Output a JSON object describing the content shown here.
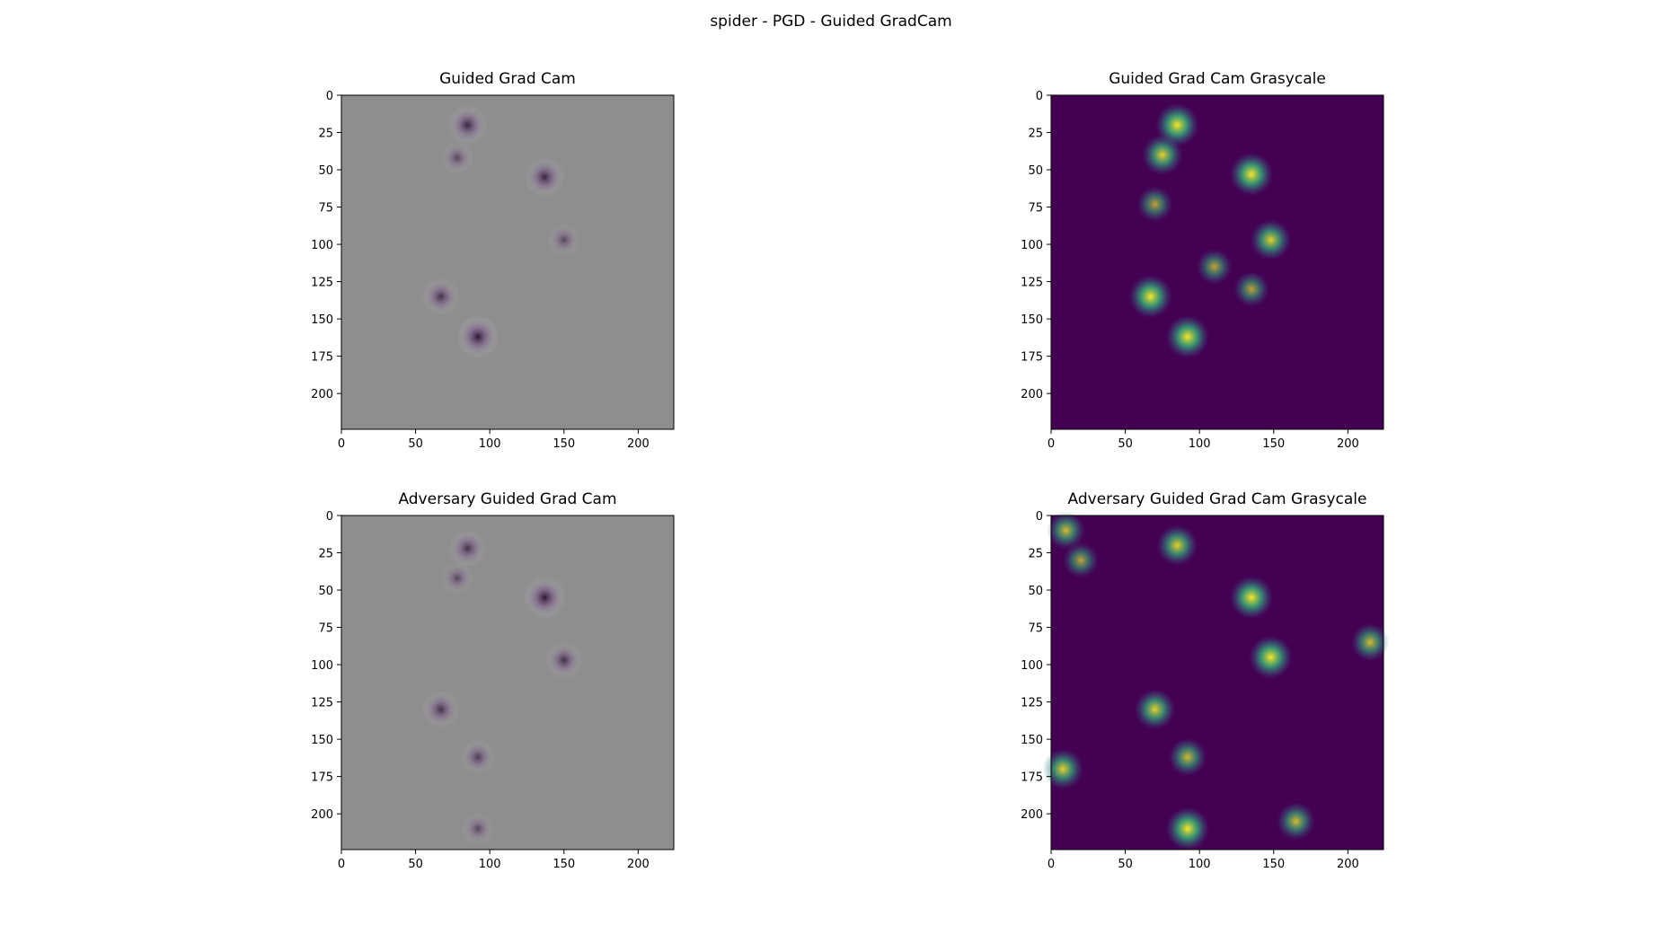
{
  "figure": {
    "title": "spider - PGD - Guided GradCam"
  },
  "colors": {
    "gray_bg": "#8e8e8e",
    "viridis_dark": "#440154",
    "viridis_yellow": "#fde725"
  },
  "chart_data": [
    {
      "type": "heatmap",
      "title": "Guided Grad Cam",
      "colormap": "rgb",
      "xlim": [
        0,
        224
      ],
      "ylim": [
        224,
        0
      ],
      "xticks": [
        0,
        50,
        100,
        150,
        200
      ],
      "yticks": [
        0,
        25,
        50,
        75,
        100,
        125,
        150,
        175,
        200
      ],
      "hotspots": [
        {
          "x": 85,
          "y": 20,
          "v": 0.9
        },
        {
          "x": 78,
          "y": 42,
          "v": 0.6
        },
        {
          "x": 137,
          "y": 55,
          "v": 0.9
        },
        {
          "x": 150,
          "y": 97,
          "v": 0.6
        },
        {
          "x": 67,
          "y": 135,
          "v": 0.8
        },
        {
          "x": 92,
          "y": 162,
          "v": 1.0
        }
      ]
    },
    {
      "type": "heatmap",
      "title": "Guided Grad Cam Grasycale",
      "colormap": "viridis",
      "xlim": [
        0,
        224
      ],
      "ylim": [
        224,
        0
      ],
      "xticks": [
        0,
        50,
        100,
        150,
        200
      ],
      "yticks": [
        0,
        25,
        50,
        75,
        100,
        125,
        150,
        175,
        200
      ],
      "hotspots": [
        {
          "x": 85,
          "y": 20,
          "v": 1.0
        },
        {
          "x": 75,
          "y": 40,
          "v": 0.9
        },
        {
          "x": 135,
          "y": 53,
          "v": 1.0
        },
        {
          "x": 70,
          "y": 73,
          "v": 0.7
        },
        {
          "x": 148,
          "y": 97,
          "v": 0.9
        },
        {
          "x": 110,
          "y": 115,
          "v": 0.7
        },
        {
          "x": 67,
          "y": 135,
          "v": 1.0
        },
        {
          "x": 92,
          "y": 162,
          "v": 1.0
        },
        {
          "x": 135,
          "y": 130,
          "v": 0.7
        }
      ]
    },
    {
      "type": "heatmap",
      "title": "Adversary Guided Grad Cam",
      "colormap": "rgb",
      "xlim": [
        0,
        224
      ],
      "ylim": [
        224,
        0
      ],
      "xticks": [
        0,
        50,
        100,
        150,
        200
      ],
      "yticks": [
        0,
        25,
        50,
        75,
        100,
        125,
        150,
        175,
        200
      ],
      "hotspots": [
        {
          "x": 85,
          "y": 22,
          "v": 0.8
        },
        {
          "x": 78,
          "y": 42,
          "v": 0.6
        },
        {
          "x": 137,
          "y": 55,
          "v": 1.0
        },
        {
          "x": 150,
          "y": 97,
          "v": 0.8
        },
        {
          "x": 67,
          "y": 130,
          "v": 0.8
        },
        {
          "x": 92,
          "y": 162,
          "v": 0.7
        },
        {
          "x": 92,
          "y": 210,
          "v": 0.6
        }
      ]
    },
    {
      "type": "heatmap",
      "title": "Adversary Guided Grad Cam Grasycale",
      "colormap": "viridis",
      "xlim": [
        0,
        224
      ],
      "ylim": [
        224,
        0
      ],
      "xticks": [
        0,
        50,
        100,
        150,
        200
      ],
      "yticks": [
        0,
        25,
        50,
        75,
        100,
        125,
        150,
        175,
        200
      ],
      "hotspots": [
        {
          "x": 85,
          "y": 20,
          "v": 0.9
        },
        {
          "x": 135,
          "y": 55,
          "v": 1.0
        },
        {
          "x": 148,
          "y": 95,
          "v": 1.0
        },
        {
          "x": 70,
          "y": 130,
          "v": 0.9
        },
        {
          "x": 92,
          "y": 162,
          "v": 0.8
        },
        {
          "x": 10,
          "y": 10,
          "v": 0.8
        },
        {
          "x": 8,
          "y": 170,
          "v": 0.9
        },
        {
          "x": 92,
          "y": 210,
          "v": 1.0
        },
        {
          "x": 215,
          "y": 85,
          "v": 0.8
        },
        {
          "x": 165,
          "y": 205,
          "v": 0.8
        },
        {
          "x": 20,
          "y": 30,
          "v": 0.7
        }
      ]
    }
  ]
}
